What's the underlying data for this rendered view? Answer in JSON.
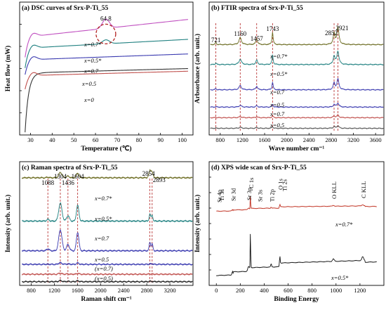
{
  "chart_data": [
    {
      "id": "a",
      "type": "line",
      "title": "(a) DSC curves of Srx-P-Ti_55",
      "xlabel": "Temperature (℃)",
      "ylabel": "Heat flow (mW)",
      "xlim": [
        25,
        105
      ],
      "xticks": [
        30,
        40,
        50,
        60,
        70,
        80,
        90,
        100
      ],
      "annotation": "64.8",
      "peak_x": 64.8,
      "series": [
        {
          "name": "x=0",
          "color": "#333333",
          "y_low": 0.02,
          "y_plateau": 0.47,
          "y_end": 0.5,
          "peak": 0.0
        },
        {
          "name": "x=0.5",
          "color": "#c0504d",
          "y_low": 0.34,
          "y_plateau": 0.45,
          "y_end": 0.48,
          "peak": 0.0
        },
        {
          "name": "x=0.7",
          "color": "#3a3ab0",
          "y_low": 0.45,
          "y_plateau": 0.57,
          "y_end": 0.61,
          "peak": 0.0
        },
        {
          "name": "x=0.5*",
          "color": "#1f8080",
          "y_low": 0.5,
          "y_plateau": 0.66,
          "y_end": 0.72,
          "peak": 0.03
        },
        {
          "name": "x=0.7*",
          "color": "#c050c0",
          "y_low": 0.58,
          "y_plateau": 0.75,
          "y_end": 0.87,
          "peak": 0.07
        }
      ],
      "legend_labels": [
        "x=0.7*",
        "x=0.5*",
        "x=0.7",
        "x=0.5",
        "x=0"
      ]
    },
    {
      "id": "b",
      "type": "line",
      "title": "(b) FTIR spectra of Srx-P-Ti_55",
      "xlabel": "Wave number cm⁻¹",
      "ylabel": "Arbsorbance (arb. unit.)",
      "xlim": [
        600,
        3750
      ],
      "xticks": [
        800,
        1200,
        1600,
        2000,
        2400,
        2800,
        3200,
        3600
      ],
      "peaks": [
        721,
        1160,
        1457,
        1743,
        2852,
        2921
      ],
      "series": [
        {
          "name": "x=0.5",
          "color": "#555555",
          "baseline": 0.05,
          "scale": 0.02
        },
        {
          "name": "x=0.7",
          "color": "#c0504d",
          "baseline": 0.13,
          "scale": 0.02
        },
        {
          "name": "x=0.5",
          "color": "#3a3ab0",
          "baseline": 0.21,
          "scale": 0.03
        },
        {
          "name": "x=0.7",
          "color": "#3a3ab0",
          "baseline": 0.34,
          "scale": 0.08
        },
        {
          "name": "x=0.5*",
          "color": "#1f8080",
          "baseline": 0.53,
          "scale": 0.1
        },
        {
          "name": "x=0.7*",
          "color": "#6b6b20",
          "baseline": 0.68,
          "scale": 0.13
        }
      ]
    },
    {
      "id": "c",
      "type": "line",
      "title": "(c) Raman spectra of Srx-P-Ti_55",
      "xlabel": "Raman shift cm⁻¹",
      "ylabel": "Intensity (arb. unit.)",
      "xlim": [
        600,
        3600
      ],
      "xticks": [
        800,
        1200,
        1600,
        2000,
        2400,
        2800,
        3200
      ],
      "peaks": [
        1088,
        1304,
        1436,
        1604,
        2854,
        2893
      ],
      "series": [
        {
          "name": "(x=0.5)",
          "color": "#222222",
          "baseline": 0.03,
          "scale": 0.01
        },
        {
          "name": "(x=0.7)",
          "color": "#c0504d",
          "baseline": 0.09,
          "scale": 0.01
        },
        {
          "name": "x=0.5",
          "color": "#3a3ab0",
          "baseline": 0.17,
          "scale": 0.015
        },
        {
          "name": "x=0.7",
          "color": "#3a3ab0",
          "baseline": 0.28,
          "scale": 0.2
        },
        {
          "name": "x=0.5*",
          "color": "#1f8080",
          "baseline": 0.52,
          "scale": 0.17
        },
        {
          "name": "x=0.7*",
          "color": "#6b6b20",
          "baseline": 0.87,
          "scale": 0.05
        }
      ]
    },
    {
      "id": "d",
      "type": "line",
      "title": "(d) XPS wide scan of Srx-P-Ti_55",
      "xlabel": "Binding Energy",
      "ylabel": "Intensity (arb. unit.)",
      "xlim": [
        -60,
        1400
      ],
      "xticks": [
        0,
        200,
        400,
        600,
        800,
        1000,
        1200
      ],
      "peak_labels": [
        "Sr 4p",
        "Ti 3s",
        "Sr 3d",
        "Sr 3p",
        "C 1s",
        "Sr 3s",
        "Ti 2p",
        "O 1s",
        "Ti 2s",
        "O KLL",
        "C KLL"
      ],
      "series": [
        {
          "name": "x=0.7*",
          "color": "#c03020",
          "baseline": 0.6
        },
        {
          "name": "x=0.5*",
          "color": "#111111",
          "baseline": 0.08
        }
      ]
    }
  ]
}
